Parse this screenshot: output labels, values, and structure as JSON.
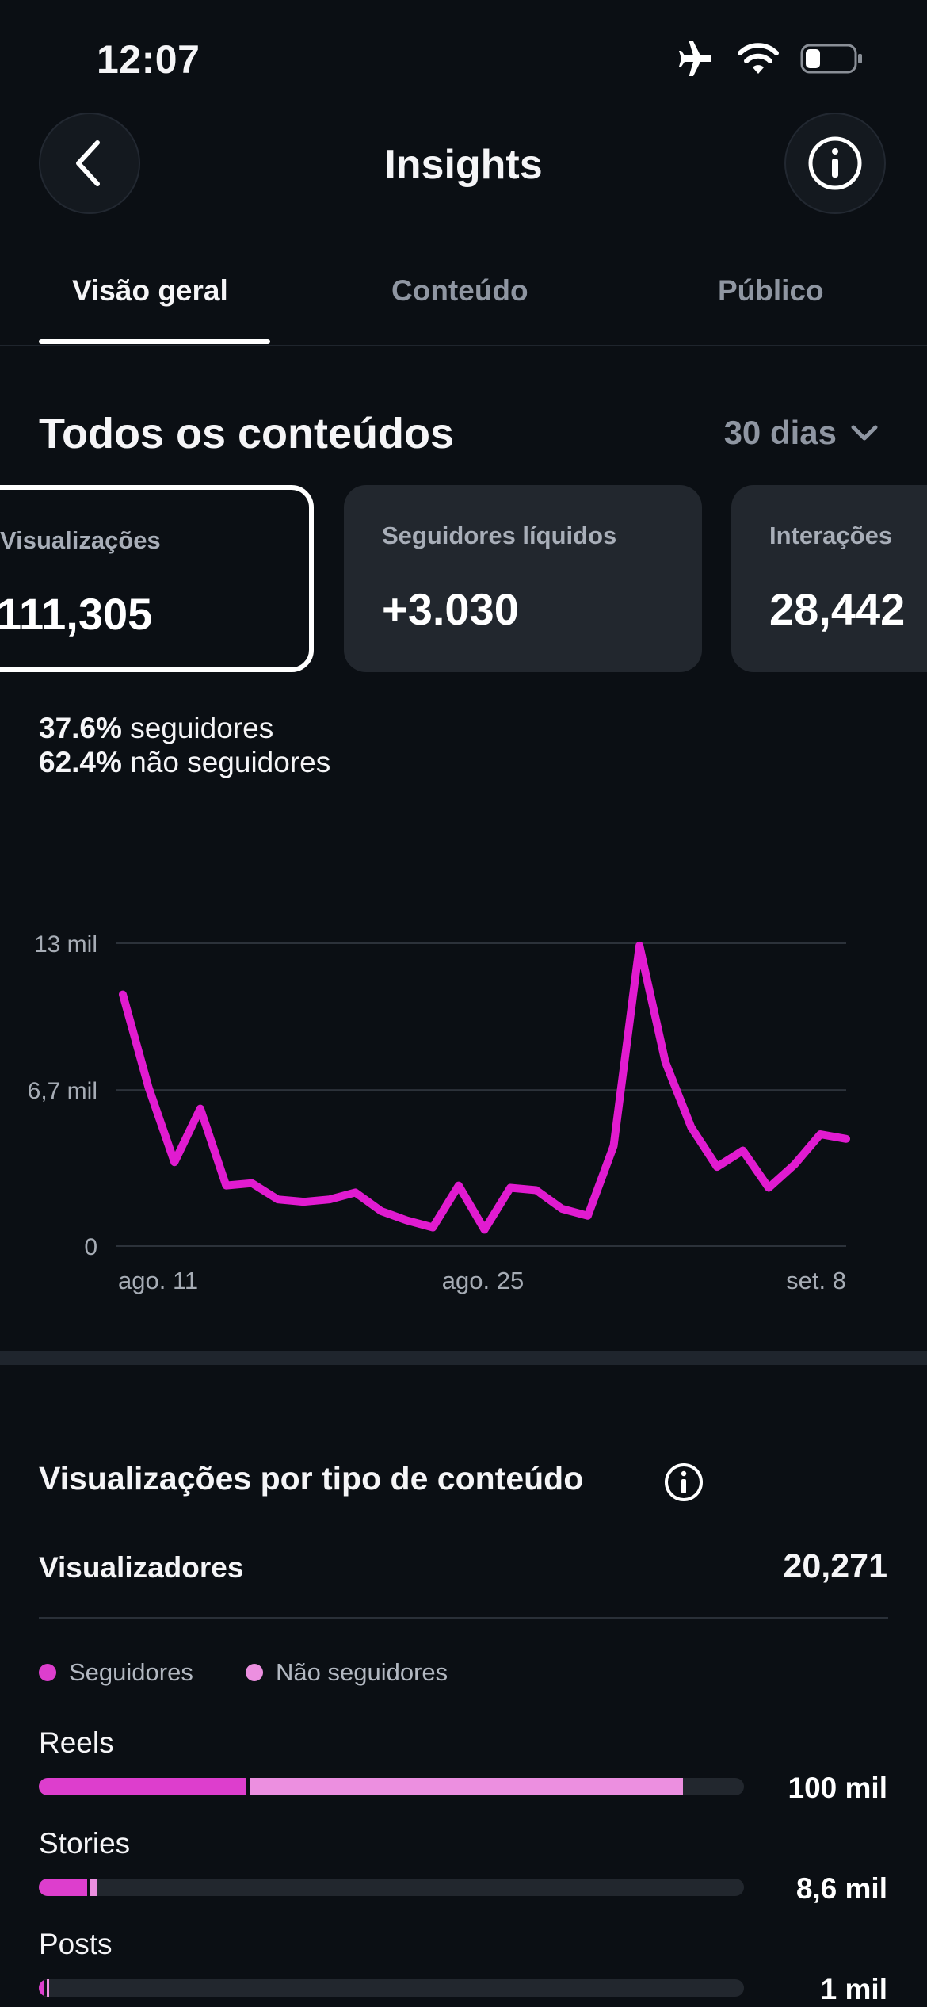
{
  "status_bar": {
    "time": "12:07",
    "icons": [
      "airplane-icon",
      "wifi-icon",
      "battery-icon"
    ]
  },
  "header": {
    "title": "Insights",
    "back_icon": "chevron-left-icon",
    "info_icon": "info-icon"
  },
  "tabs": [
    {
      "label": "Visão geral",
      "active": true
    },
    {
      "label": "Conteúdo",
      "active": false
    },
    {
      "label": "Público",
      "active": false
    }
  ],
  "section": {
    "title": "Todos os conteúdos",
    "period": "30 dias"
  },
  "cards": [
    {
      "label": "Visualizações",
      "value": "111,305",
      "selected": true
    },
    {
      "label": "Seguidores líquidos",
      "value": "+3.030",
      "selected": false
    },
    {
      "label": "Interações",
      "value": "28,442",
      "selected": false
    }
  ],
  "breakdown": {
    "followers_pct": "37.6%",
    "followers_text": "seguidores",
    "nonfollowers_pct": "62.4%",
    "nonfollowers_text": "não seguidores"
  },
  "chart_data": {
    "type": "line",
    "x_tick_labels": [
      "ago. 11",
      "ago. 25",
      "set. 8"
    ],
    "y_tick_labels": [
      "13 mil",
      "6,7 mil",
      "0"
    ],
    "y_ticks": [
      13000,
      6700,
      0
    ],
    "ylim": [
      0,
      13000
    ],
    "grid": true,
    "color": "#e11bd0",
    "series": [
      {
        "values": [
          10800,
          6800,
          3600,
          5900,
          2600,
          2700,
          2000,
          1900,
          2000,
          2300,
          1500,
          1100,
          800,
          2600,
          700,
          2500,
          2400,
          1600,
          1300,
          4300,
          12900,
          7900,
          5100,
          3400,
          4100,
          2500,
          3500,
          4800,
          4600
        ]
      }
    ]
  },
  "content_type": {
    "title": "Visualizações por tipo de conteúdo",
    "viewers_label": "Visualizadores",
    "viewers_value": "20,271",
    "legend_followers": "Seguidores",
    "legend_nonfollowers": "Não seguidores",
    "legend_colors": {
      "followers": "#dd3ecd",
      "nonfollowers": "#ec8fe0"
    },
    "rows": [
      {
        "label": "Reels",
        "value": "100 mil",
        "followers_fraction": 0.294,
        "nonfollowers_fraction": 0.615
      },
      {
        "label": "Stories",
        "value": "8,6 mil",
        "followers_fraction": 0.068,
        "nonfollowers_fraction": 0.011
      },
      {
        "label": "Posts",
        "value": "1 mil",
        "followers_fraction": 0.007,
        "nonfollowers_fraction": 0.003
      }
    ]
  }
}
